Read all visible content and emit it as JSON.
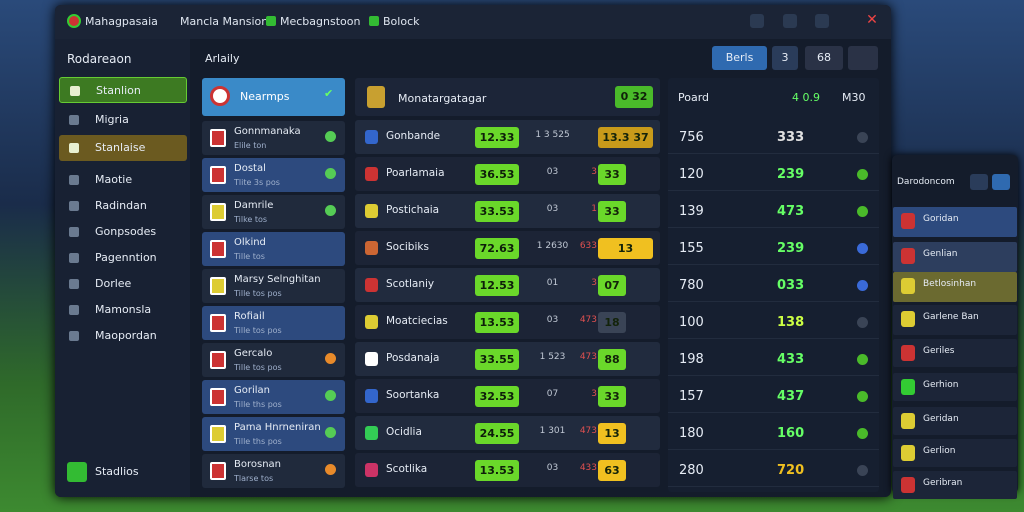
{
  "titlebar": {
    "tabs": [
      "Mahagpasaia",
      "Mancla Mansion",
      "Mecbagnstoon",
      "Bolock"
    ]
  },
  "sidebar": {
    "title": "Rodareaon",
    "items": [
      "Stanlion",
      "Migria",
      "Stanlaise",
      "Maotie",
      "Radindan",
      "Gonpsodes",
      "Pagenntion",
      "Dorlee",
      "Mamonsla",
      "Maopordan"
    ],
    "footer": "Stadlios"
  },
  "header": {
    "label": "Arlaily",
    "buttons": [
      "Berls",
      "3",
      "68"
    ]
  },
  "teams": {
    "selected": "Nearmps",
    "items": [
      {
        "name": "Gonnmanaka",
        "sub": "Elile ton"
      },
      {
        "name": "Dostal",
        "sub": "Tlite 3s pos"
      },
      {
        "name": "Damrile",
        "sub": "Tilke tos"
      },
      {
        "name": "Olkind",
        "sub": "Tille tos"
      },
      {
        "name": "Marsy Selnghitan",
        "sub": "Tille tos pos"
      },
      {
        "name": "Rofiail",
        "sub": "Tille tos pos"
      },
      {
        "name": "Gercalo",
        "sub": "Tille tos pos"
      },
      {
        "name": "Gorilan",
        "sub": "Tille ths pos"
      },
      {
        "name": "Pama Hnrneniran",
        "sub": "Tille ths pos"
      },
      {
        "name": "Borosnan",
        "sub": "Tlarse tos"
      }
    ]
  },
  "table": {
    "title": "Monatargatagar",
    "badge": "0 32",
    "rows": [
      {
        "name": "Gonbande",
        "odds": "12.33",
        "mid": "1 3 525",
        "third": "",
        "pick": "13.3 37"
      },
      {
        "name": "Poarlamaia",
        "odds": "36.53",
        "mid": "03",
        "third": "3",
        "pick": "33"
      },
      {
        "name": "Postichaia",
        "odds": "33.53",
        "mid": "03",
        "third": "1",
        "pick": "33"
      },
      {
        "name": "Socibiks",
        "odds": "72.63",
        "mid": "1 2630",
        "third": "633",
        "pick": "13"
      },
      {
        "name": "Scotlaniy",
        "odds": "12.53",
        "mid": "01",
        "third": "3",
        "pick": "07"
      },
      {
        "name": "Moatciecias",
        "odds": "13.53",
        "mid": "03",
        "third": "473",
        "pick": "18"
      },
      {
        "name": "Posdanaja",
        "odds": "33.55",
        "mid": "1 523",
        "third": "473",
        "pick": "88"
      },
      {
        "name": "Soortanka",
        "odds": "32.53",
        "mid": "07",
        "third": "3",
        "pick": "33"
      },
      {
        "name": "Ocidlia",
        "odds": "24.55",
        "mid": "1 301",
        "third": "473",
        "pick": "13"
      },
      {
        "name": "Scotlika",
        "odds": "13.53",
        "mid": "03",
        "third": "433",
        "pick": "63"
      }
    ]
  },
  "stats": {
    "title": "Poard",
    "value": "4 0.9",
    "col": "M30",
    "rows": [
      {
        "a": "756",
        "b": "333"
      },
      {
        "a": "120",
        "b": "239"
      },
      {
        "a": "139",
        "b": "473"
      },
      {
        "a": "155",
        "b": "239"
      },
      {
        "a": "780",
        "b": "033"
      },
      {
        "a": "100",
        "b": "138"
      },
      {
        "a": "198",
        "b": "433"
      },
      {
        "a": "157",
        "b": "437"
      },
      {
        "a": "180",
        "b": "160"
      },
      {
        "a": "280",
        "b": "720"
      }
    ]
  },
  "mini_panel": {
    "title": "Darodoncom",
    "items": [
      "Goridan",
      "Genlian",
      "Betlosinhan",
      "Garlene Ban",
      "Geriles",
      "Gerhion",
      "Geridan",
      "Gerlion",
      "Geribran"
    ]
  }
}
